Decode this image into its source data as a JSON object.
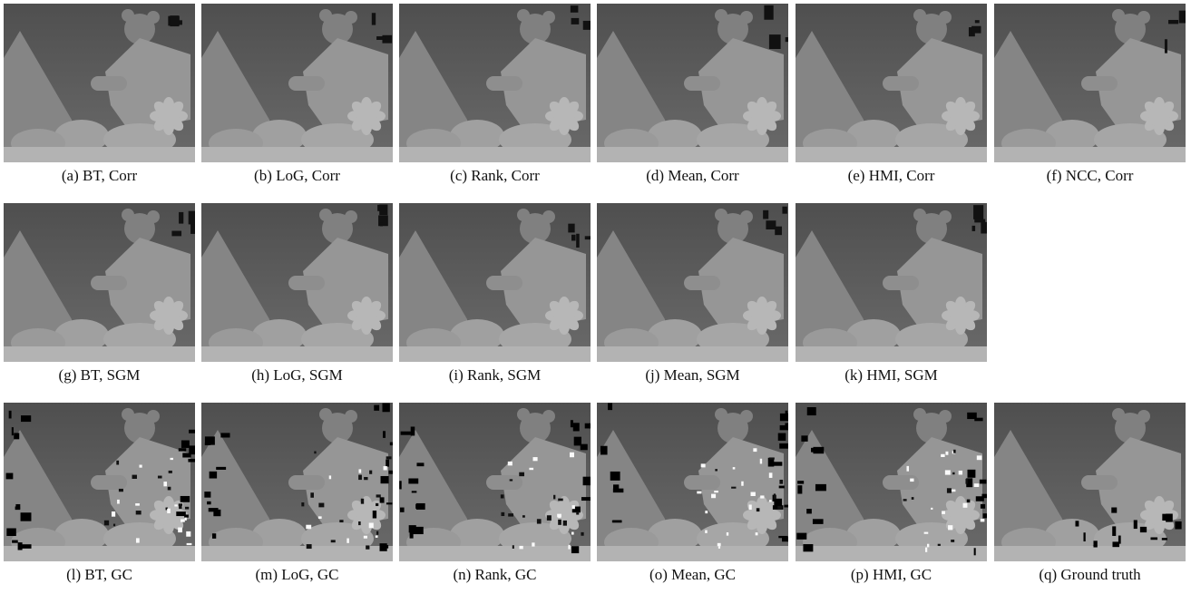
{
  "figure": {
    "panels": [
      {
        "id": "a",
        "caption": "(a)  BT, Corr",
        "method": "BT",
        "aggregation": "Corr"
      },
      {
        "id": "b",
        "caption": "(b)  LoG, Corr",
        "method": "LoG",
        "aggregation": "Corr"
      },
      {
        "id": "c",
        "caption": "(c)  Rank, Corr",
        "method": "Rank",
        "aggregation": "Corr"
      },
      {
        "id": "d",
        "caption": "(d)  Mean, Corr",
        "method": "Mean",
        "aggregation": "Corr"
      },
      {
        "id": "e",
        "caption": "(e)  HMI, Corr",
        "method": "HMI",
        "aggregation": "Corr"
      },
      {
        "id": "f",
        "caption": "(f)  NCC, Corr",
        "method": "NCC",
        "aggregation": "Corr"
      },
      {
        "id": "g",
        "caption": "(g)  BT, SGM",
        "method": "BT",
        "aggregation": "SGM"
      },
      {
        "id": "h",
        "caption": "(h)  LoG, SGM",
        "method": "LoG",
        "aggregation": "SGM"
      },
      {
        "id": "i",
        "caption": "(i)  Rank, SGM",
        "method": "Rank",
        "aggregation": "SGM"
      },
      {
        "id": "j",
        "caption": "(j)  Mean, SGM",
        "method": "Mean",
        "aggregation": "SGM"
      },
      {
        "id": "k",
        "caption": "(k)  HMI, SGM",
        "method": "HMI",
        "aggregation": "SGM"
      },
      {
        "id": "l",
        "caption": "(l)  BT, GC",
        "method": "BT",
        "aggregation": "GC"
      },
      {
        "id": "m",
        "caption": "(m)  LoG, GC",
        "method": "LoG",
        "aggregation": "GC"
      },
      {
        "id": "n",
        "caption": "(n)  Rank, GC",
        "method": "Rank",
        "aggregation": "GC"
      },
      {
        "id": "o",
        "caption": "(o)  Mean, GC",
        "method": "Mean",
        "aggregation": "GC"
      },
      {
        "id": "p",
        "caption": "(p)  HMI, GC",
        "method": "HMI",
        "aggregation": "GC"
      },
      {
        "id": "q",
        "caption": "(q)  Ground truth",
        "method": "Ground truth",
        "aggregation": ""
      }
    ]
  },
  "colors": {
    "background": "#ffffff",
    "far_plane": "#5a5a5a",
    "near_plane": "#9e9e9e",
    "occlusion": "#000000"
  }
}
